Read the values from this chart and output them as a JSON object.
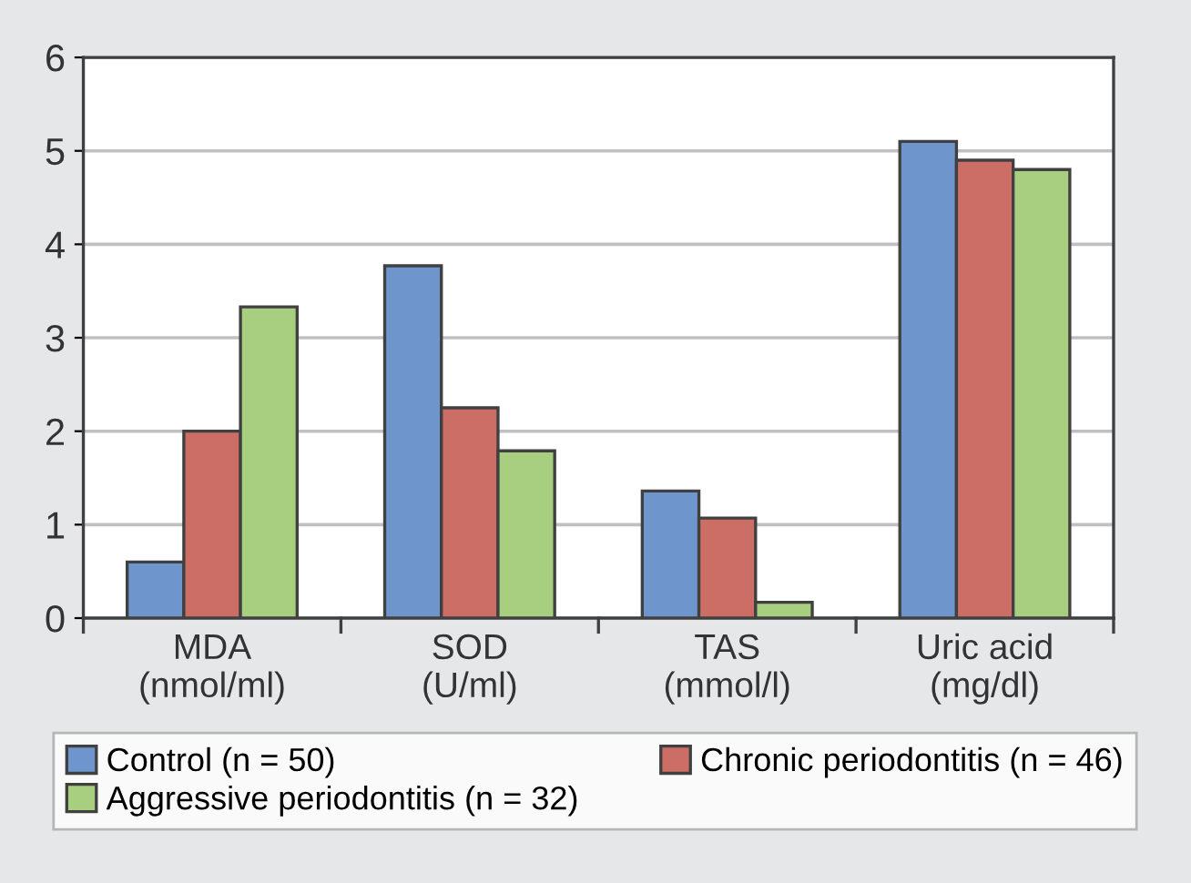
{
  "chart_data": {
    "type": "bar",
    "categories": [
      "MDA\n(nmol/ml)",
      "SOD\n(U/ml)",
      "TAS\n(mmol/l)",
      "Uric acid\n(mg/dl)"
    ],
    "series": [
      {
        "name": "Control (n = 50)",
        "color": "#6f96cc",
        "values": [
          0.6,
          3.77,
          1.36,
          5.1
        ]
      },
      {
        "name": "Chronic periodontitis (n = 46)",
        "color": "#cc6e66",
        "values": [
          2.0,
          2.25,
          1.07,
          4.9
        ]
      },
      {
        "name": "Aggressive periodontitis (n = 32)",
        "color": "#a8cf80",
        "values": [
          3.33,
          1.79,
          0.17,
          4.8
        ]
      }
    ],
    "ylim": [
      0,
      6
    ],
    "yticks": [
      0,
      1,
      2,
      3,
      4,
      5,
      6
    ],
    "grid": "y",
    "legend": "bottom"
  }
}
